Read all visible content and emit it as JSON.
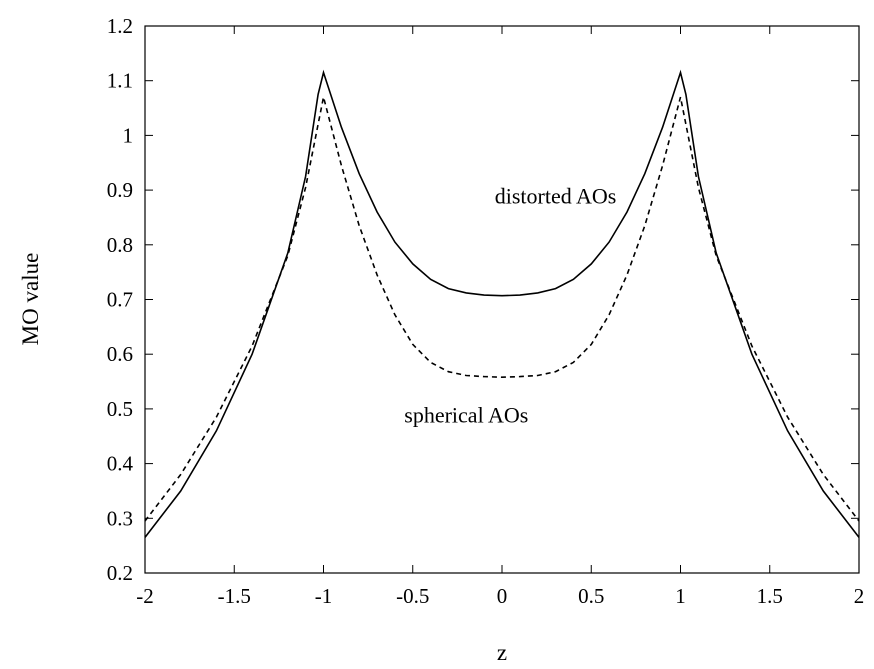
{
  "chart_data": {
    "type": "line",
    "title": "",
    "xlabel": "z",
    "ylabel": "MO value",
    "xlim": [
      -2,
      2
    ],
    "ylim": [
      0.2,
      1.2
    ],
    "xticks": [
      -2,
      -1.5,
      -1,
      -0.5,
      0,
      0.5,
      1,
      1.5,
      2
    ],
    "yticks": [
      0.2,
      0.3,
      0.4,
      0.5,
      0.6,
      0.7,
      0.8,
      0.9,
      1,
      1.1,
      1.2
    ],
    "xtick_labels": [
      "-2",
      "-1.5",
      "-1",
      "-0.5",
      "0",
      "0.5",
      "1",
      "1.5",
      "2"
    ],
    "ytick_labels": [
      "0.2",
      "0.3",
      "0.4",
      "0.5",
      "0.6",
      "0.7",
      "0.8",
      "0.9",
      "1",
      "1.1",
      "1.2"
    ],
    "grid": false,
    "legend": "none",
    "series": [
      {
        "label": "distorted AOs",
        "style": "solid",
        "color": "#000000",
        "x": [
          -2,
          -1.8,
          -1.6,
          -1.4,
          -1.2,
          -1.1,
          -1.03,
          -1.0,
          -0.9,
          -0.8,
          -0.7,
          -0.6,
          -0.5,
          -0.4,
          -0.3,
          -0.2,
          -0.1,
          0,
          0.1,
          0.2,
          0.3,
          0.4,
          0.5,
          0.6,
          0.7,
          0.8,
          0.9,
          1.0,
          1.03,
          1.1,
          1.2,
          1.4,
          1.6,
          1.8,
          2
        ],
        "y": [
          0.265,
          0.35,
          0.46,
          0.6,
          0.785,
          0.925,
          1.075,
          1.115,
          1.015,
          0.93,
          0.86,
          0.805,
          0.765,
          0.737,
          0.72,
          0.712,
          0.708,
          0.707,
          0.708,
          0.712,
          0.72,
          0.737,
          0.765,
          0.805,
          0.86,
          0.93,
          1.015,
          1.115,
          1.075,
          0.925,
          0.785,
          0.6,
          0.46,
          0.35,
          0.265
        ]
      },
      {
        "label": "spherical AOs",
        "style": "dashed",
        "color": "#000000",
        "x": [
          -2,
          -1.8,
          -1.6,
          -1.4,
          -1.2,
          -1.1,
          -1.0,
          -0.9,
          -0.8,
          -0.7,
          -0.6,
          -0.5,
          -0.4,
          -0.3,
          -0.2,
          -0.1,
          0,
          0.1,
          0.2,
          0.3,
          0.4,
          0.5,
          0.6,
          0.7,
          0.8,
          0.9,
          1.0,
          1.1,
          1.2,
          1.4,
          1.6,
          1.8,
          2
        ],
        "y": [
          0.295,
          0.38,
          0.485,
          0.615,
          0.78,
          0.905,
          1.07,
          0.945,
          0.835,
          0.745,
          0.672,
          0.618,
          0.585,
          0.568,
          0.561,
          0.559,
          0.558,
          0.559,
          0.561,
          0.568,
          0.585,
          0.618,
          0.672,
          0.745,
          0.835,
          0.945,
          1.07,
          0.905,
          0.78,
          0.615,
          0.485,
          0.38,
          0.295
        ]
      }
    ],
    "annotations": [
      {
        "text": "distorted AOs",
        "x": 0.3,
        "y": 0.89
      },
      {
        "text": "spherical AOs",
        "x": -0.2,
        "y": 0.49
      }
    ]
  }
}
